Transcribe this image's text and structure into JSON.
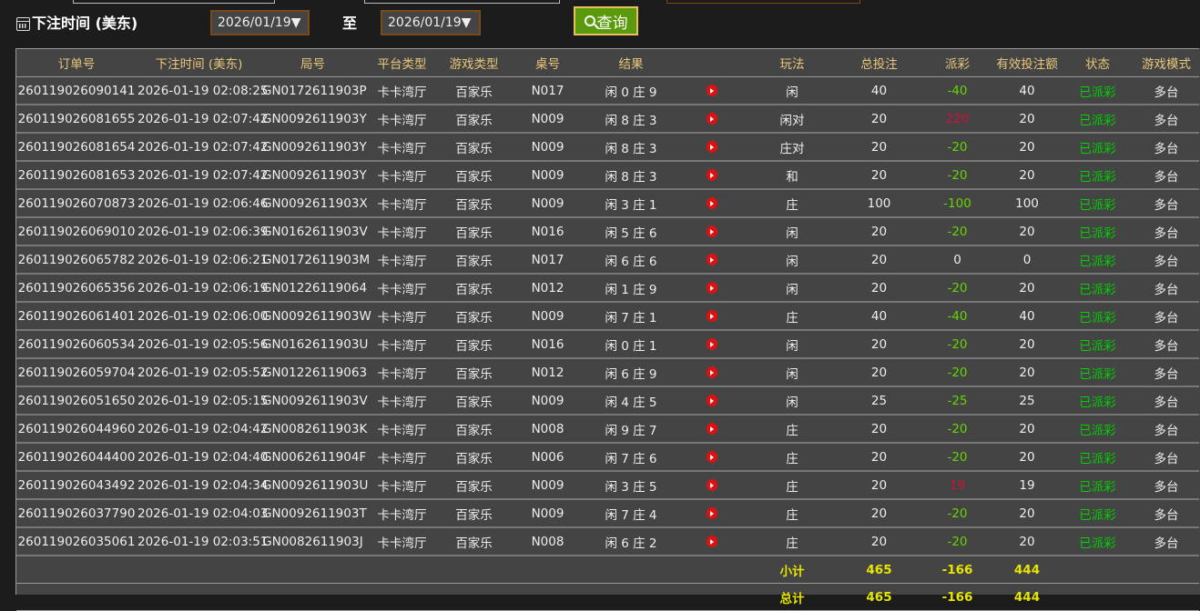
{
  "filter": {
    "label": "下注时间 (美东)",
    "start_date": "2026/01/19▼",
    "to_label": "至",
    "end_date": "2026/01/19▼",
    "query_label": "查询"
  },
  "columns": [
    "订单号",
    "下注时间 (美东)",
    "局号",
    "平台类型",
    "游戏类型",
    "桌号",
    "结果",
    "",
    "玩法",
    "总投注",
    "派彩",
    "有效投注额",
    "状态",
    "游戏模式"
  ],
  "rows": [
    [
      "260119026090141",
      "2026-01-19 02:08:25",
      "GN0172611903P",
      "卡卡湾厅",
      "百家乐",
      "N017",
      "闲 0 庄 9",
      "闲",
      "40",
      "-40",
      "40",
      "已派彩",
      "多台"
    ],
    [
      "260119026081655",
      "2026-01-19 02:07:42",
      "GN0092611903Y",
      "卡卡湾厅",
      "百家乐",
      "N009",
      "闲 8 庄 3",
      "闲对",
      "20",
      "220",
      "20",
      "已派彩",
      "多台"
    ],
    [
      "260119026081654",
      "2026-01-19 02:07:42",
      "GN0092611903Y",
      "卡卡湾厅",
      "百家乐",
      "N009",
      "闲 8 庄 3",
      "庄对",
      "20",
      "-20",
      "20",
      "已派彩",
      "多台"
    ],
    [
      "260119026081653",
      "2026-01-19 02:07:42",
      "GN0092611903Y",
      "卡卡湾厅",
      "百家乐",
      "N009",
      "闲 8 庄 3",
      "和",
      "20",
      "-20",
      "20",
      "已派彩",
      "多台"
    ],
    [
      "260119026070873",
      "2026-01-19 02:06:46",
      "GN0092611903X",
      "卡卡湾厅",
      "百家乐",
      "N009",
      "闲 3 庄 1",
      "庄",
      "100",
      "-100",
      "100",
      "已派彩",
      "多台"
    ],
    [
      "260119026069010",
      "2026-01-19 02:06:39",
      "GN0162611903V",
      "卡卡湾厅",
      "百家乐",
      "N016",
      "闲 5 庄 6",
      "闲",
      "20",
      "-20",
      "20",
      "已派彩",
      "多台"
    ],
    [
      "260119026065782",
      "2026-01-19 02:06:21",
      "GN0172611903M",
      "卡卡湾厅",
      "百家乐",
      "N017",
      "闲 6 庄 6",
      "闲",
      "20",
      "0",
      "0",
      "已派彩",
      "多台"
    ],
    [
      "260119026065356",
      "2026-01-19 02:06:19",
      "GN01226119064",
      "卡卡湾厅",
      "百家乐",
      "N012",
      "闲 1 庄 9",
      "闲",
      "20",
      "-20",
      "20",
      "已派彩",
      "多台"
    ],
    [
      "260119026061401",
      "2026-01-19 02:06:00",
      "GN0092611903W",
      "卡卡湾厅",
      "百家乐",
      "N009",
      "闲 7 庄 1",
      "庄",
      "40",
      "-40",
      "40",
      "已派彩",
      "多台"
    ],
    [
      "260119026060534",
      "2026-01-19 02:05:56",
      "GN0162611903U",
      "卡卡湾厅",
      "百家乐",
      "N016",
      "闲 0 庄 1",
      "闲",
      "20",
      "-20",
      "20",
      "已派彩",
      "多台"
    ],
    [
      "260119026059704",
      "2026-01-19 02:05:52",
      "GN01226119063",
      "卡卡湾厅",
      "百家乐",
      "N012",
      "闲 6 庄 9",
      "闲",
      "20",
      "-20",
      "20",
      "已派彩",
      "多台"
    ],
    [
      "260119026051650",
      "2026-01-19 02:05:15",
      "GN0092611903V",
      "卡卡湾厅",
      "百家乐",
      "N009",
      "闲 4 庄 5",
      "闲",
      "25",
      "-25",
      "25",
      "已派彩",
      "多台"
    ],
    [
      "260119026044960",
      "2026-01-19 02:04:42",
      "GN0082611903K",
      "卡卡湾厅",
      "百家乐",
      "N008",
      "闲 9 庄 7",
      "庄",
      "20",
      "-20",
      "20",
      "已派彩",
      "多台"
    ],
    [
      "260119026044400",
      "2026-01-19 02:04:40",
      "GN0062611904F",
      "卡卡湾厅",
      "百家乐",
      "N006",
      "闲 7 庄 6",
      "庄",
      "20",
      "-20",
      "20",
      "已派彩",
      "多台"
    ],
    [
      "260119026043492",
      "2026-01-19 02:04:34",
      "GN0092611903U",
      "卡卡湾厅",
      "百家乐",
      "N009",
      "闲 3 庄 5",
      "庄",
      "20",
      "19",
      "19",
      "已派彩",
      "多台"
    ],
    [
      "260119026037790",
      "2026-01-19 02:04:03",
      "GN0092611903T",
      "卡卡湾厅",
      "百家乐",
      "N009",
      "闲 7 庄 4",
      "庄",
      "20",
      "-20",
      "20",
      "已派彩",
      "多台"
    ],
    [
      "260119026035061",
      "2026-01-19 02:03:51",
      "GN0082611903J",
      "卡卡湾厅",
      "百家乐",
      "N008",
      "闲 6 庄 2",
      "庄",
      "20",
      "-20",
      "20",
      "已派彩",
      "多台"
    ]
  ],
  "summary": [
    {
      "label": "小计",
      "total_bet": "465",
      "payout": "-166",
      "valid_bet": "444"
    },
    {
      "label": "总计",
      "total_bet": "465",
      "payout": "-166",
      "valid_bet": "444"
    }
  ],
  "colors": {
    "header_text": "#e8c77a",
    "payout_negative": "#66d400",
    "payout_positive": "#d0103a",
    "status": "#00d000",
    "summary": "#e6e600",
    "query_button": "#5a9a0c"
  },
  "icons": {
    "calendar": "calendar-icon",
    "search": "search-icon",
    "replay": "play-video-icon"
  }
}
